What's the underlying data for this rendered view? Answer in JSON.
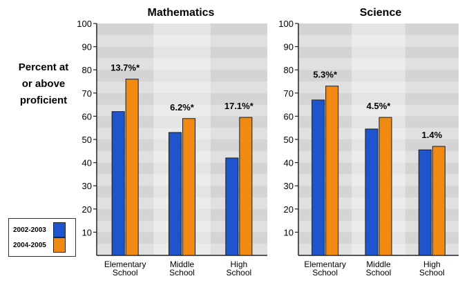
{
  "y_axis_label_lines": [
    "Percent at",
    "or above",
    "proficient"
  ],
  "legend": [
    {
      "label": "2002-2003",
      "color": "#1f55cc"
    },
    {
      "label": "2004-2005",
      "color": "#f08a12"
    }
  ],
  "chart_data": [
    {
      "type": "bar",
      "title": "Mathematics",
      "categories": [
        [
          "Elementary",
          "School"
        ],
        [
          "Middle",
          "School"
        ],
        [
          "High",
          "School"
        ]
      ],
      "series": [
        {
          "name": "2002-2003",
          "color": "#1f55cc",
          "values": [
            62,
            53,
            42
          ]
        },
        {
          "name": "2004-2005",
          "color": "#f08a12",
          "values": [
            76,
            59,
            59.5
          ]
        }
      ],
      "annotations": [
        "13.7%*",
        "6.2%*",
        "17.1%*"
      ],
      "ylim": [
        0,
        100
      ],
      "yticks": [
        "100",
        "90",
        "80",
        "70",
        "60",
        "50",
        "40",
        "30",
        "20",
        "10"
      ]
    },
    {
      "type": "bar",
      "title": "Science",
      "categories": [
        [
          "Elementary",
          "School"
        ],
        [
          "Middle",
          "School"
        ],
        [
          "High",
          "School"
        ]
      ],
      "series": [
        {
          "name": "2002-2003",
          "color": "#1f55cc",
          "values": [
            67,
            54.5,
            45.5
          ]
        },
        {
          "name": "2004-2005",
          "color": "#f08a12",
          "values": [
            73,
            59.5,
            47
          ]
        }
      ],
      "annotations": [
        "5.3%*",
        "4.5%*",
        "1.4%"
      ],
      "ylim": [
        0,
        100
      ],
      "yticks": [
        "100",
        "90",
        "80",
        "70",
        "60",
        "50",
        "40",
        "30",
        "20",
        "10"
      ]
    }
  ]
}
